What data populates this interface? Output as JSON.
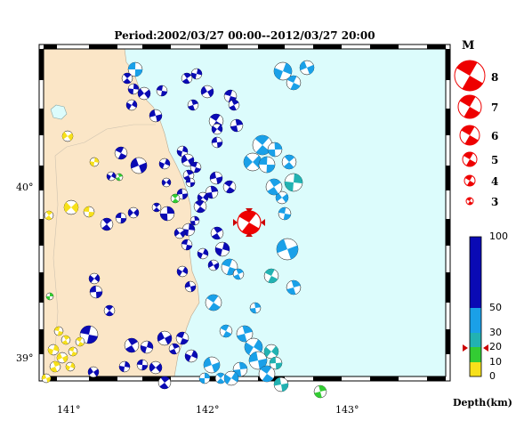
{
  "title": "Period:2002/03/27 00:00--2012/03/27 20:00",
  "legend": {
    "m_label": "M",
    "magnitudes": [
      "8",
      "7",
      "6",
      "5",
      "4",
      "3"
    ]
  },
  "depth_scale": {
    "label": "Depth(km)",
    "ticks": [
      "100",
      "50",
      "30",
      "20",
      "10",
      "0"
    ],
    "colors": {
      "shallow": "#f7e01a",
      "mid_shallow": "#33cc33",
      "mid": "#22b2b2",
      "deep": "#1aa0e8",
      "deepest": "#0a0ab4"
    }
  },
  "axes": {
    "x_ticks": [
      "141°",
      "142°",
      "143°"
    ],
    "y_ticks": [
      "40°",
      "39°"
    ]
  },
  "colors": {
    "land": "#fbe6c7",
    "sea": "#dcfcfc",
    "main_event": "#ee0000"
  }
}
